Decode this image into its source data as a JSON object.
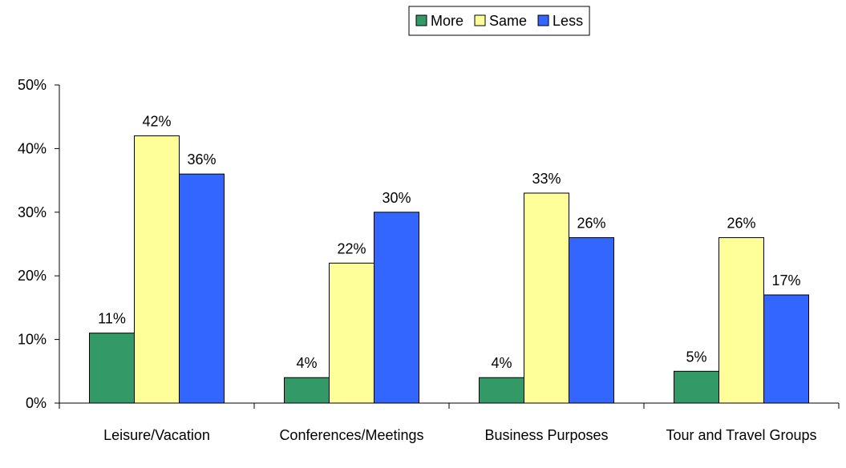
{
  "chart_data": {
    "type": "bar",
    "categories": [
      "Leisure/Vacation",
      "Conferences/Meetings",
      "Business Purposes",
      "Tour and Travel Groups"
    ],
    "series": [
      {
        "name": "More",
        "color": "#339966",
        "values": [
          11,
          4,
          4,
          5
        ],
        "labels": [
          "11%",
          "4%",
          "4%",
          "5%"
        ]
      },
      {
        "name": "Same",
        "color": "#FFFF99",
        "values": [
          42,
          22,
          33,
          26
        ],
        "labels": [
          "42%",
          "22%",
          "33%",
          "26%"
        ]
      },
      {
        "name": "Less",
        "color": "#3366FF",
        "values": [
          36,
          30,
          26,
          17
        ],
        "labels": [
          "36%",
          "30%",
          "26%",
          "17%"
        ]
      }
    ],
    "ylim": [
      0,
      50
    ],
    "yticks": [
      0,
      10,
      20,
      30,
      40,
      50
    ],
    "ytick_labels": [
      "0%",
      "10%",
      "20%",
      "30%",
      "40%",
      "50%"
    ],
    "grid": false,
    "legend_position": "top-right"
  }
}
